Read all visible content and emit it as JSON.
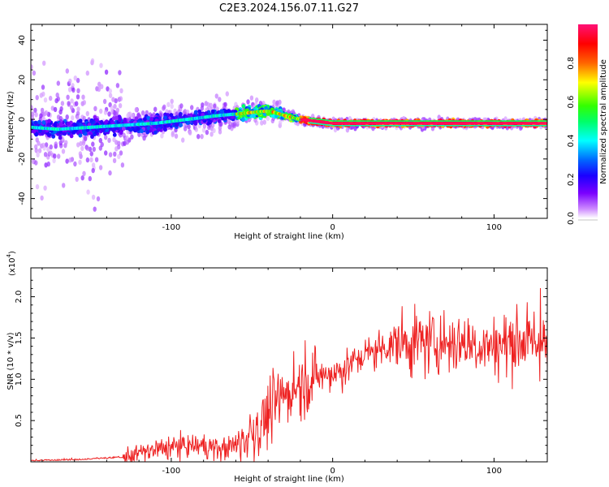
{
  "title": "C2E3.2024.156.07.11.G27",
  "chart_data": [
    {
      "type": "heatmap",
      "title": "C2E3.2024.156.07.11.G27",
      "xlabel": "Height of straight line (km)",
      "ylabel": "Frequency (Hz)",
      "xlim": [
        -187,
        133
      ],
      "ylim": [
        -50,
        48
      ],
      "x_ticks": [
        -100,
        0,
        100
      ],
      "y_ticks": [
        -40,
        -20,
        0,
        20,
        40
      ],
      "colorbar": {
        "label": "Normalized spectral amplitude",
        "range": [
          0,
          1
        ],
        "ticks": [
          "0.0",
          "0.2",
          "0.4",
          "0.6",
          "0.8"
        ],
        "colors": [
          "#ffffff",
          "#cc88ff",
          "#7a00ff",
          "#1a00ff",
          "#0066ff",
          "#00ffff",
          "#00ff66",
          "#33ff00",
          "#ffff00",
          "#ff6600",
          "#ff0000",
          "#ff1177"
        ]
      },
      "ridge": {
        "description_points_x": [
          -187,
          -170,
          -150,
          -130,
          -110,
          -90,
          -70,
          -55,
          -45,
          -38,
          -30,
          -20,
          -10,
          0,
          20,
          60,
          100,
          133
        ],
        "description_points_y": [
          -4,
          -5,
          -4,
          -3,
          -2,
          0,
          2,
          3,
          4,
          4,
          2,
          0,
          -1,
          -2,
          -2,
          -2,
          -2,
          -2
        ]
      }
    },
    {
      "type": "line",
      "xlabel": "Height of straight line (km)",
      "ylabel": "SNR (10 * v/v)",
      "y_multiplier": "(x10",
      "y_multiplier_exp": "4",
      "xlim": [
        -187,
        133
      ],
      "ylim": [
        0,
        2.35
      ],
      "x_ticks": [
        -100,
        0,
        100
      ],
      "y_ticks": [
        "0.5",
        "1.0",
        "1.5",
        "2.0"
      ],
      "series": [
        {
          "name": "SNR",
          "color": "#ee2222",
          "x": [
            -187,
            -160,
            -130,
            -120,
            -100,
            -80,
            -70,
            -60,
            -45,
            -35,
            -25,
            -15,
            -5,
            5,
            20,
            40,
            60,
            80,
            100,
            120,
            133
          ],
          "y": [
            0.01,
            0.02,
            0.05,
            0.1,
            0.18,
            0.2,
            0.15,
            0.2,
            0.45,
            0.7,
            0.9,
            1.0,
            1.05,
            1.1,
            1.3,
            1.45,
            1.45,
            1.45,
            1.4,
            1.5,
            1.4
          ]
        }
      ]
    }
  ]
}
